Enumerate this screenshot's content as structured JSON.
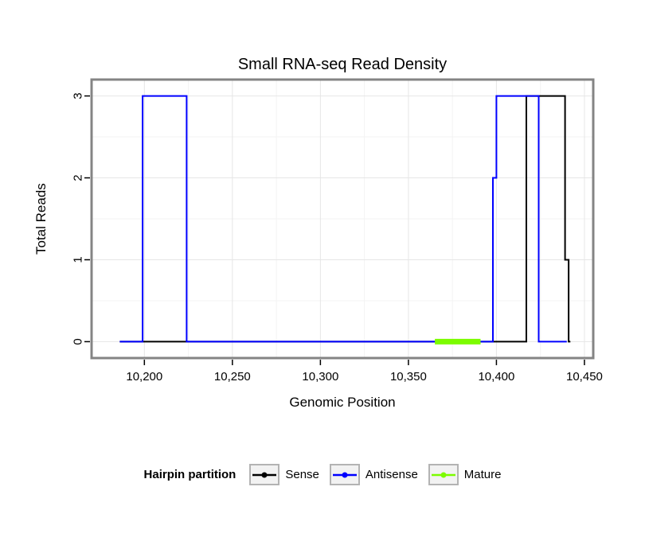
{
  "chart_data": {
    "type": "line",
    "title": "Small RNA-seq Read Density",
    "xlabel": "Genomic Position",
    "ylabel": "Total Reads",
    "xlim": [
      10170,
      10455
    ],
    "ylim": [
      -0.2,
      3.2
    ],
    "x_ticks": [
      10200,
      10250,
      10300,
      10350,
      10400,
      10450
    ],
    "x_tick_labels": [
      "10,200",
      "10,250",
      "10,300",
      "10,350",
      "10,400",
      "10,450"
    ],
    "x_minor": [
      10225,
      10275,
      10325,
      10375,
      10425
    ],
    "y_ticks": [
      0,
      1,
      2,
      3
    ],
    "y_tick_labels": [
      "0",
      "1",
      "2",
      "3"
    ],
    "y_minor": [
      0.5,
      1.5,
      2.5
    ],
    "grid": true,
    "panel_border_color": "#848484",
    "grid_major_color": "#e6e6e6",
    "grid_minor_color": "#f3f3f3",
    "legend": {
      "title": "Hairpin partition",
      "position": "bottom"
    },
    "series": [
      {
        "name": "Sense",
        "color": "#000000",
        "line_width": 2,
        "points": [
          [
            10186,
            0
          ],
          [
            10417,
            0
          ],
          [
            10417,
            3
          ],
          [
            10439,
            3
          ],
          [
            10439,
            1
          ],
          [
            10441,
            1
          ],
          [
            10441,
            0
          ],
          [
            10442,
            0
          ]
        ]
      },
      {
        "name": "Antisense",
        "color": "#0000ff",
        "line_width": 2,
        "points": [
          [
            10186,
            0
          ],
          [
            10199,
            0
          ],
          [
            10199,
            3
          ],
          [
            10224,
            3
          ],
          [
            10224,
            0
          ],
          [
            10398,
            0
          ],
          [
            10398,
            2
          ],
          [
            10400,
            2
          ],
          [
            10400,
            3
          ],
          [
            10424,
            3
          ],
          [
            10424,
            0
          ],
          [
            10440,
            0
          ]
        ]
      },
      {
        "name": "Mature",
        "color": "#7cfc00",
        "line_width": 7,
        "points": [
          [
            10365,
            0
          ],
          [
            10391,
            0
          ]
        ]
      }
    ]
  }
}
